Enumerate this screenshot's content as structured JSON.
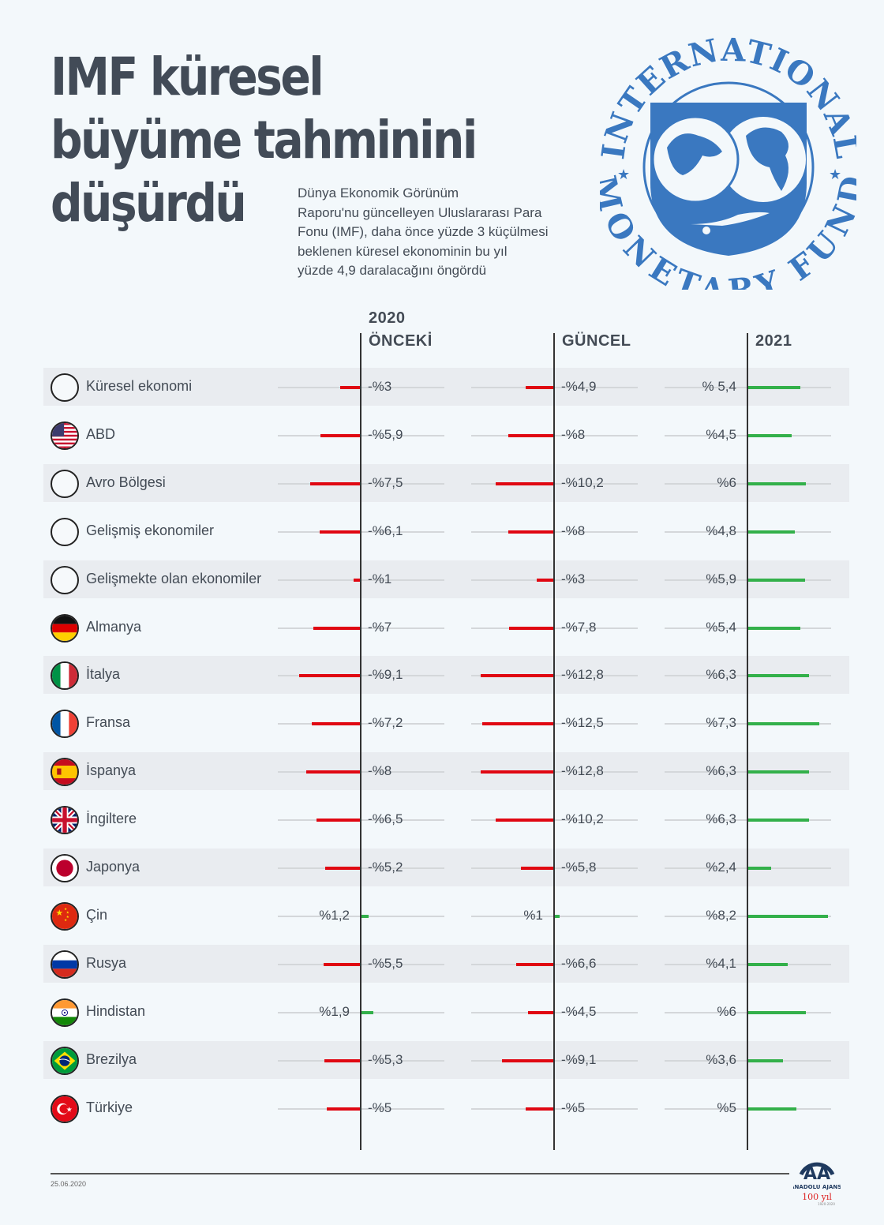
{
  "header": {
    "title_lines": [
      "IMF küresel",
      "büyüme tahminini",
      "düşürdü"
    ],
    "subtitle_lines": [
      "Dünya Ekonomik Görünüm",
      "Raporu'nu güncelleyen Uluslararası Para",
      "Fonu (IMF), daha önce yüzde 3 küçülmesi",
      "beklenen küresel ekonominin bu yıl",
      "yüzde 4,9 daralacağını öngördü"
    ],
    "logo": {
      "icon": "imf-seal-icon",
      "top_text": "INTERNATIONAL",
      "bottom_text": "MONETARY FUND",
      "color": "#3a78c0"
    }
  },
  "columns": {
    "year_2020": "2020",
    "previous": "ÖNCEKİ",
    "current": "GÜNCEL",
    "year_2021": "2021"
  },
  "colors": {
    "negative": "#e00712",
    "positive": "#33b04a",
    "track": "#d4d7da",
    "row_shade": "#e9ecf0"
  },
  "rows": [
    {
      "name": "Küresel ekonomi",
      "flag": "blank-circle-icon",
      "prev": -3.0,
      "prev_label": "-%3",
      "cur": -4.9,
      "cur_label": "-%4,9",
      "next": 5.4,
      "next_label": "% 5,4"
    },
    {
      "name": "ABD",
      "flag": "usa-flag-icon",
      "prev": -5.9,
      "prev_label": "-%5,9",
      "cur": -8.0,
      "cur_label": "-%8",
      "next": 4.5,
      "next_label": "%4,5"
    },
    {
      "name": "Avro Bölgesi",
      "flag": "blank-circle-icon",
      "prev": -7.5,
      "prev_label": "-%7,5",
      "cur": -10.2,
      "cur_label": "-%10,2",
      "next": 6.0,
      "next_label": "%6"
    },
    {
      "name": "Gelişmiş ekonomiler",
      "flag": "blank-circle-icon",
      "prev": -6.1,
      "prev_label": "-%6,1",
      "cur": -8.0,
      "cur_label": "-%8",
      "next": 4.8,
      "next_label": "%4,8"
    },
    {
      "name": "Gelişmekte olan ekonomiler",
      "flag": "blank-circle-icon",
      "prev": -1.0,
      "prev_label": "-%1",
      "cur": -3.0,
      "cur_label": "-%3",
      "next": 5.9,
      "next_label": "%5,9"
    },
    {
      "name": "Almanya",
      "flag": "germany-flag-icon",
      "prev": -7.0,
      "prev_label": "-%7",
      "cur": -7.8,
      "cur_label": "-%7,8",
      "next": 5.4,
      "next_label": "%5,4"
    },
    {
      "name": "İtalya",
      "flag": "italy-flag-icon",
      "prev": -9.1,
      "prev_label": "-%9,1",
      "cur": -12.8,
      "cur_label": "-%12,8",
      "next": 6.3,
      "next_label": "%6,3"
    },
    {
      "name": "Fransa",
      "flag": "france-flag-icon",
      "prev": -7.2,
      "prev_label": "-%7,2",
      "cur": -12.5,
      "cur_label": "-%12,5",
      "next": 7.3,
      "next_label": "%7,3"
    },
    {
      "name": "İspanya",
      "flag": "spain-flag-icon",
      "prev": -8.0,
      "prev_label": "-%8",
      "cur": -12.8,
      "cur_label": "-%12,8",
      "next": 6.3,
      "next_label": "%6,3"
    },
    {
      "name": "İngiltere",
      "flag": "uk-flag-icon",
      "prev": -6.5,
      "prev_label": "-%6,5",
      "cur": -10.2,
      "cur_label": "-%10,2",
      "next": 6.3,
      "next_label": "%6,3"
    },
    {
      "name": "Japonya",
      "flag": "japan-flag-icon",
      "prev": -5.2,
      "prev_label": "-%5,2",
      "cur": -5.8,
      "cur_label": "-%5,8",
      "next": 2.4,
      "next_label": "%2,4"
    },
    {
      "name": "Çin",
      "flag": "china-flag-icon",
      "prev": 1.2,
      "prev_label": "%1,2",
      "cur": 1.0,
      "cur_label": "%1",
      "next": 8.2,
      "next_label": "%8,2"
    },
    {
      "name": "Rusya",
      "flag": "russia-flag-icon",
      "prev": -5.5,
      "prev_label": "-%5,5",
      "cur": -6.6,
      "cur_label": "-%6,6",
      "next": 4.1,
      "next_label": "%4,1"
    },
    {
      "name": "Hindistan",
      "flag": "india-flag-icon",
      "prev": 1.9,
      "prev_label": "%1,9",
      "cur": -4.5,
      "cur_label": "-%4,5",
      "next": 6.0,
      "next_label": "%6"
    },
    {
      "name": "Brezilya",
      "flag": "brazil-flag-icon",
      "prev": -5.3,
      "prev_label": "-%5,3",
      "cur": -9.1,
      "cur_label": "-%9,1",
      "next": 3.6,
      "next_label": "%3,6"
    },
    {
      "name": "Türkiye",
      "flag": "turkey-flag-icon",
      "prev": -5.0,
      "prev_label": "-%5",
      "cur": -5.0,
      "cur_label": "-%5",
      "next": 5.0,
      "next_label": "%5"
    }
  ],
  "footer": {
    "date": "25.06.2020",
    "agency": "ANADOLU AJANSI",
    "anniversary": "100 yıl",
    "anniversary_years": "1920-2020"
  },
  "chart_data": {
    "type": "bar",
    "title": "IMF küresel büyüme tahminini düşürdü",
    "subtitle": "Dünya Ekonomik Görünüm Raporu'nu güncelleyen Uluslararası Para Fonu (IMF), daha önce yüzde 3 küçülmesi beklenen küresel ekonominin bu yıl yüzde 4,9 daralacağını öngördü",
    "orientation": "horizontal",
    "unit": "%",
    "categories": [
      "Küresel ekonomi",
      "ABD",
      "Avro Bölgesi",
      "Gelişmiş ekonomiler",
      "Gelişmekte olan ekonomiler",
      "Almanya",
      "İtalya",
      "Fransa",
      "İspanya",
      "İngiltere",
      "Japonya",
      "Çin",
      "Rusya",
      "Hindistan",
      "Brezilya",
      "Türkiye"
    ],
    "series": [
      {
        "name": "2020 Önceki",
        "values": [
          -3.0,
          -5.9,
          -7.5,
          -6.1,
          -1.0,
          -7.0,
          -9.1,
          -7.2,
          -8.0,
          -6.5,
          -5.2,
          1.2,
          -5.5,
          1.9,
          -5.3,
          -5.0
        ]
      },
      {
        "name": "2020 Güncel",
        "values": [
          -4.9,
          -8.0,
          -10.2,
          -8.0,
          -3.0,
          -7.8,
          -12.8,
          -12.5,
          -12.8,
          -10.2,
          -5.8,
          1.0,
          -6.6,
          -4.5,
          -9.1,
          -5.0
        ]
      },
      {
        "name": "2021",
        "values": [
          5.4,
          4.5,
          6.0,
          4.8,
          5.9,
          5.4,
          6.3,
          7.3,
          6.3,
          6.3,
          2.4,
          8.2,
          4.1,
          6.0,
          3.6,
          5.0
        ]
      }
    ],
    "legend": [
      "2020 ÖNCEKİ",
      "GÜNCEL",
      "2021"
    ],
    "grid": false
  }
}
